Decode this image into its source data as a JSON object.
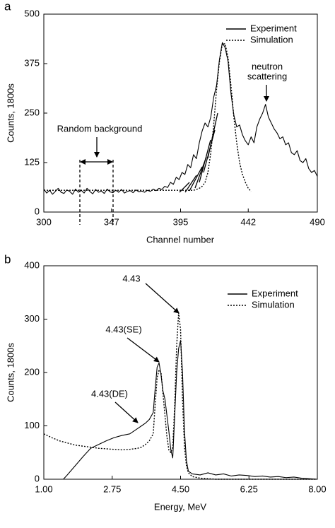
{
  "chart_data": [
    {
      "type": "line",
      "panel_label": "a",
      "x_label": "Channel number",
      "y_label": "Counts, 1800s",
      "x": [
        300,
        302,
        304,
        306,
        308,
        310,
        312,
        314,
        316,
        318,
        320,
        322,
        324,
        326,
        328,
        330,
        332,
        334,
        336,
        338,
        340,
        342,
        344,
        346,
        348,
        350,
        352,
        354,
        356,
        358,
        360,
        362,
        364,
        366,
        368,
        370,
        372,
        374,
        376,
        378,
        380,
        382,
        384,
        386,
        388,
        390,
        392,
        394,
        396,
        398,
        400,
        402,
        404,
        406,
        408,
        410,
        412,
        414,
        416,
        418,
        420,
        422,
        424,
        426,
        428,
        430,
        432,
        434,
        436,
        438,
        440,
        442,
        444,
        446,
        448,
        450,
        452,
        454,
        456,
        458,
        460,
        462,
        464,
        466,
        468,
        470,
        472,
        474,
        476,
        478,
        480,
        482,
        484,
        486,
        488,
        490
      ],
      "series": [
        {
          "name": "Experiment",
          "color": "#000000",
          "style": "solid",
          "values": [
            58,
            48,
            55,
            45,
            52,
            60,
            50,
            47,
            56,
            52,
            45,
            58,
            50,
            55,
            48,
            60,
            52,
            46,
            57,
            50,
            53,
            47,
            58,
            51,
            49,
            55,
            50,
            57,
            48,
            52,
            54,
            49,
            56,
            51,
            53,
            50,
            55,
            52,
            58,
            54,
            60,
            57,
            65,
            62,
            75,
            70,
            88,
            82,
            100,
            95,
            120,
            112,
            145,
            135,
            175,
            205,
            225,
            215,
            240,
            290,
            320,
            385,
            428,
            415,
            380,
            300,
            245,
            215,
            220,
            195,
            180,
            170,
            190,
            175,
            215,
            235,
            250,
            272,
            240,
            225,
            210,
            200,
            185,
            190,
            170,
            175,
            150,
            145,
            155,
            130,
            125,
            135,
            110,
            100,
            105,
            90
          ]
        },
        {
          "name": "Simulation",
          "color": "#000000",
          "style": "dotted",
          "values": [
            55,
            55,
            55,
            55,
            55,
            55,
            55,
            55,
            55,
            55,
            55,
            55,
            55,
            55,
            55,
            55,
            55,
            55,
            55,
            55,
            55,
            55,
            55,
            55,
            55,
            55,
            55,
            55,
            55,
            55,
            55,
            55,
            55,
            55,
            55,
            55,
            55,
            55,
            55,
            55,
            55,
            55,
            55,
            55,
            55,
            55,
            55,
            55,
            55,
            55,
            55,
            55,
            55,
            57,
            60,
            65,
            75,
            100,
            150,
            220,
            310,
            380,
            425,
            425,
            390,
            320,
            240,
            175,
            125,
            95,
            75,
            60,
            52,
            null,
            null,
            null,
            null,
            null,
            null,
            null,
            null,
            null,
            null,
            null,
            null,
            null,
            null,
            null,
            null,
            null,
            null,
            null,
            null,
            null,
            null,
            null
          ]
        }
      ],
      "xlim": [
        300,
        490
      ],
      "xticks": [
        300,
        347,
        395,
        442,
        490
      ],
      "ylim": [
        0,
        500
      ],
      "yticks": [
        0,
        125,
        250,
        375,
        500
      ],
      "legend": "upper right",
      "annotations": [
        "Random background",
        "neutron",
        "scattering"
      ]
    },
    {
      "type": "line",
      "panel_label": "b",
      "x_label": "Energy, MeV",
      "y_label": "Counts, 1800s",
      "x": [
        1.0,
        1.2,
        1.4,
        1.5,
        1.6,
        1.8,
        2.0,
        2.2,
        2.4,
        2.6,
        2.8,
        3.0,
        3.2,
        3.4,
        3.5,
        3.6,
        3.7,
        3.8,
        3.85,
        3.9,
        3.95,
        4.0,
        4.05,
        4.1,
        4.15,
        4.2,
        4.25,
        4.3,
        4.35,
        4.4,
        4.45,
        4.5,
        4.55,
        4.6,
        4.65,
        4.7,
        4.8,
        5.0,
        5.2,
        5.4,
        5.6,
        5.8,
        6.0,
        6.2,
        6.4,
        6.6,
        6.8,
        7.0,
        7.2,
        7.4,
        7.6,
        7.8,
        8.0
      ],
      "series": [
        {
          "name": "Experiment",
          "color": "#000000",
          "style": "solid",
          "values": [
            null,
            null,
            null,
            0,
            8,
            25,
            42,
            58,
            65,
            72,
            78,
            82,
            85,
            95,
            100,
            105,
            112,
            125,
            170,
            210,
            218,
            195,
            165,
            150,
            120,
            90,
            55,
            40,
            120,
            200,
            245,
            260,
            200,
            90,
            35,
            15,
            10,
            8,
            12,
            8,
            10,
            6,
            8,
            7,
            5,
            6,
            4,
            5,
            3,
            4,
            2,
            1,
            0
          ]
        },
        {
          "name": "Simulation",
          "color": "#000000",
          "style": "dotted",
          "values": [
            85,
            78,
            72,
            70,
            68,
            64,
            62,
            60,
            58,
            57,
            56,
            55,
            56,
            58,
            60,
            65,
            72,
            85,
            140,
            190,
            205,
            200,
            160,
            120,
            80,
            55,
            50,
            60,
            140,
            250,
            312,
            280,
            150,
            60,
            25,
            12,
            5,
            2,
            1,
            0,
            0,
            0,
            0,
            0,
            0,
            0,
            0,
            0,
            0,
            0,
            0,
            0,
            0
          ]
        }
      ],
      "xlim": [
        1,
        8
      ],
      "xticks": [
        {
          "value": 1,
          "label": "1.00"
        },
        2.75,
        {
          "value": 4.5,
          "label": "4.50"
        },
        6.25,
        {
          "value": 8,
          "label": "8.00"
        }
      ],
      "ylim": [
        0,
        400
      ],
      "yticks": [
        0,
        100,
        200,
        300,
        400
      ],
      "legend": "right",
      "annotations": [
        "4.43",
        "4.43(SE)",
        "4.43(DE)"
      ]
    }
  ]
}
